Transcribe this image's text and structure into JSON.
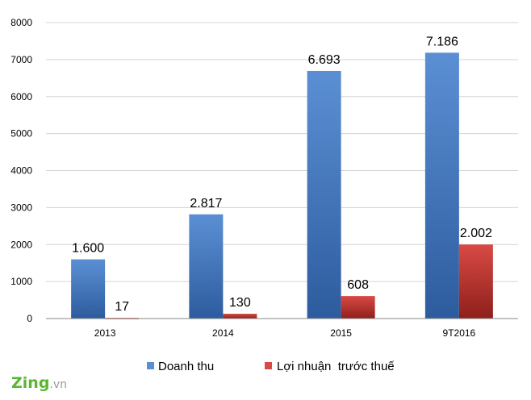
{
  "colors": {
    "series_1_top": "#5b8fd4",
    "series_1_bottom": "#2d5c9e",
    "series_2_top": "#d94a45",
    "series_2_bottom": "#8e1f1b",
    "grid": "#d4d4d4",
    "axis": "#8a8a8a",
    "logo_green": "#5bb531",
    "logo_gray": "#9a9a9a"
  },
  "logo": {
    "brand": "Zing",
    "suffix": ".vn"
  },
  "chart_data": {
    "type": "bar",
    "title": "",
    "xlabel": "",
    "ylabel": "",
    "ylim": [
      0,
      8000
    ],
    "yticks": [
      0,
      1000,
      2000,
      3000,
      4000,
      5000,
      6000,
      7000,
      8000
    ],
    "ytick_labels": [
      "0",
      "1000",
      "2000",
      "3000",
      "4000",
      "5000",
      "6000",
      "7000",
      "8000"
    ],
    "grid": true,
    "legend_position": "bottom",
    "categories": [
      "2013",
      "2014",
      "2015",
      "9T2016"
    ],
    "series": [
      {
        "name": "Doanh thu",
        "values": [
          1600,
          2817,
          6693,
          7186
        ],
        "labels": [
          "1.600",
          "2.817",
          "6.693",
          "7.186"
        ]
      },
      {
        "name": "Lợi nhuận  trước thuế",
        "values": [
          17,
          130,
          608,
          2002
        ],
        "labels": [
          "17",
          "130",
          "608",
          "2.002"
        ]
      }
    ]
  }
}
